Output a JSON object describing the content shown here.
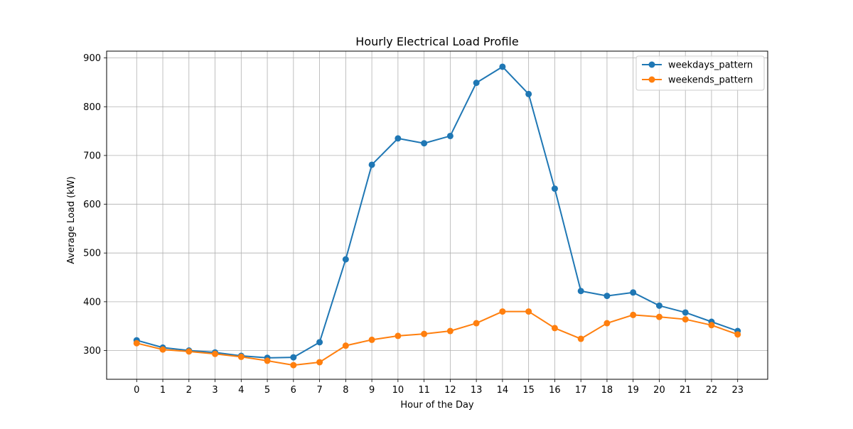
{
  "chart_data": {
    "type": "line",
    "title": "Hourly Electrical Load Profile",
    "xlabel": "Hour of the Day",
    "ylabel": "Average Load (kW)",
    "x": [
      0,
      1,
      2,
      3,
      4,
      5,
      6,
      7,
      8,
      9,
      10,
      11,
      12,
      13,
      14,
      15,
      16,
      17,
      18,
      19,
      20,
      21,
      22,
      23
    ],
    "xlim": [
      -1.15,
      24.15
    ],
    "ylim": [
      241,
      914
    ],
    "yticks": [
      300,
      400,
      500,
      600,
      700,
      800,
      900
    ],
    "grid": true,
    "legend": "top-right",
    "series": [
      {
        "name": "weekdays_pattern",
        "color": "#1f77b4",
        "marker": "circle",
        "values": [
          321,
          306,
          300,
          296,
          289,
          285,
          286,
          317,
          487,
          681,
          735,
          725,
          740,
          849,
          882,
          826,
          632,
          422,
          412,
          419,
          392,
          378,
          359,
          340
        ]
      },
      {
        "name": "weekends_pattern",
        "color": "#ff7f0e",
        "marker": "circle",
        "values": [
          315,
          302,
          298,
          293,
          287,
          279,
          270,
          276,
          310,
          322,
          330,
          334,
          340,
          356,
          380,
          380,
          346,
          324,
          356,
          373,
          369,
          364,
          352,
          333
        ]
      }
    ]
  }
}
